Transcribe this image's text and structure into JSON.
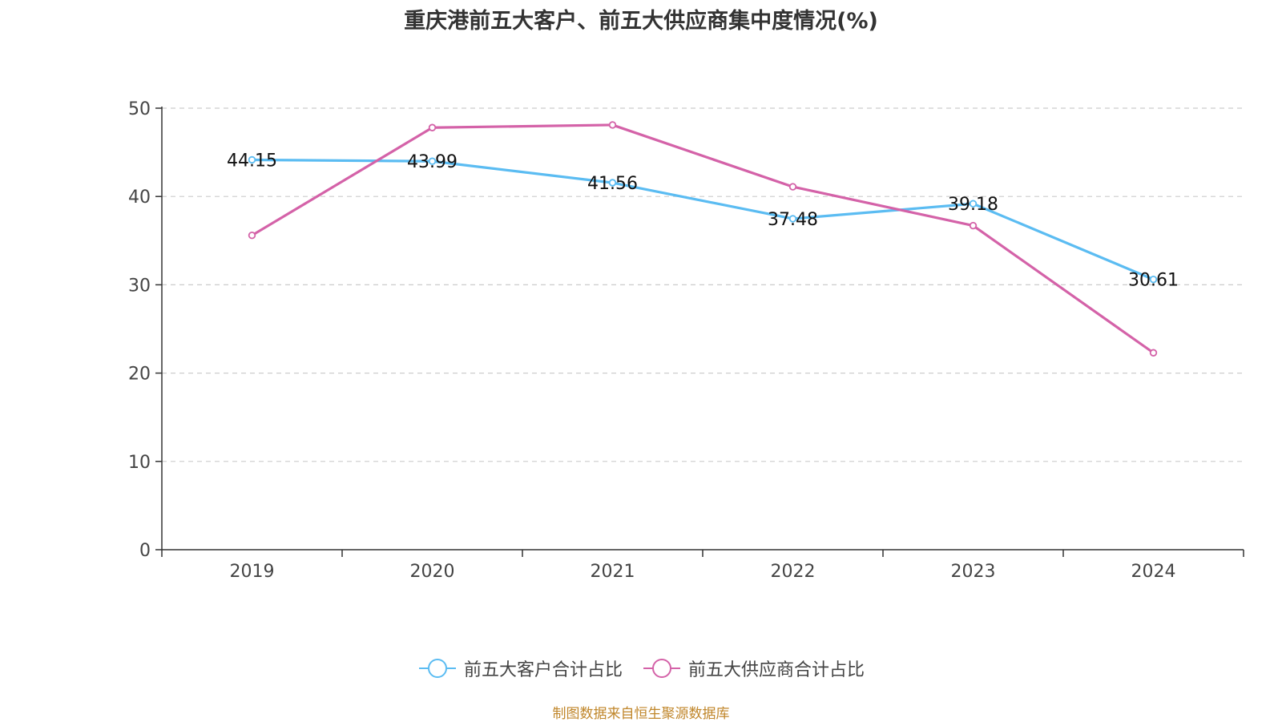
{
  "chart_data": {
    "type": "line",
    "title": "重庆港前五大客户、前五大供应商集中度情况(%)",
    "categories": [
      "2019",
      "2020",
      "2021",
      "2022",
      "2023",
      "2024"
    ],
    "series": [
      {
        "name": "前五大客户合计占比",
        "color": "#5bbcf2",
        "values": [
          44.15,
          43.99,
          41.56,
          37.48,
          39.18,
          30.61
        ],
        "show_labels": true
      },
      {
        "name": "前五大供应商合计占比",
        "color": "#d462a8",
        "values": [
          35.6,
          47.8,
          48.1,
          41.1,
          36.7,
          22.3
        ],
        "show_labels": false
      }
    ],
    "y_ticks": [
      0,
      10,
      20,
      30,
      40,
      50
    ],
    "ylim": [
      0,
      50
    ],
    "grid": "horizontal dashed",
    "legend_position": "bottom-center"
  },
  "footer": {
    "source": "制图数据来自恒生聚源数据库"
  }
}
